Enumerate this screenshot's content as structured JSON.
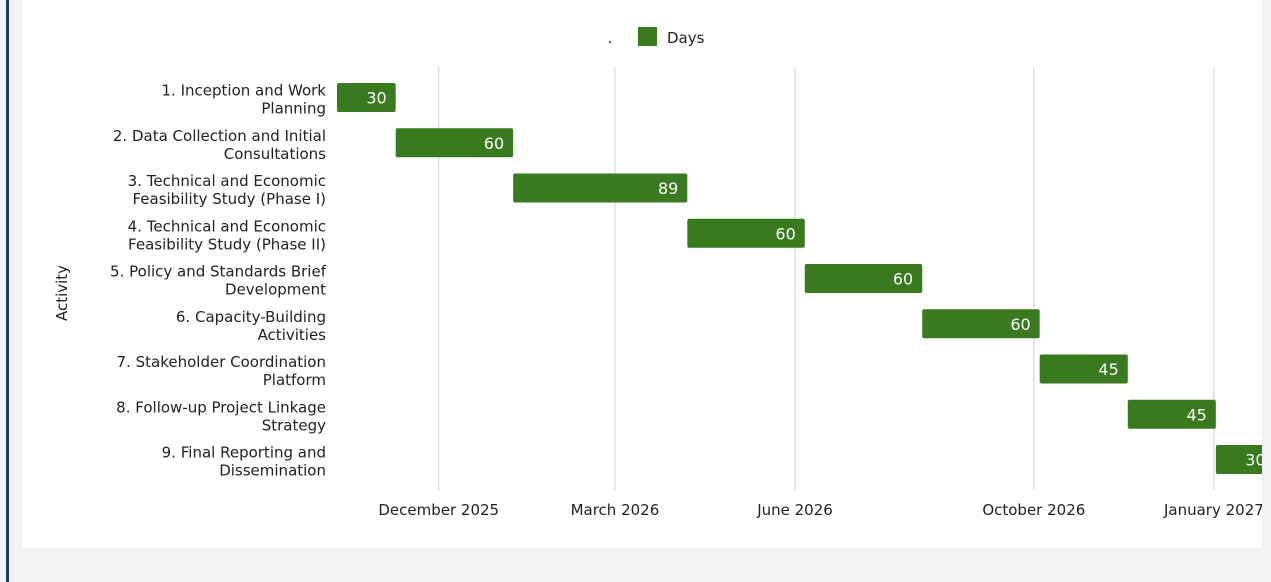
{
  "chart_data": {
    "type": "bar",
    "subtype": "gantt",
    "title": "",
    "xlabel": "",
    "ylabel": "Activity",
    "legend": {
      "placement": "top",
      "marker": ".",
      "label": "Days"
    },
    "grid": true,
    "colors": {
      "bar": "#3a7a1f",
      "grid": "#d0d0d0",
      "text": "#222222",
      "bar_label": "#ffffff"
    },
    "x_range": [
      "2025-10-09",
      "2027-01-22"
    ],
    "x_ticks": [
      {
        "date": "2025-12-01",
        "label": "December 2025"
      },
      {
        "date": "2026-03-01",
        "label": "March 2026"
      },
      {
        "date": "2026-06-01",
        "label": "June 2026"
      },
      {
        "date": "2026-10-01",
        "label": "October 2026"
      },
      {
        "date": "2027-01-01",
        "label": "January 2027"
      }
    ],
    "categories": [
      [
        "1. Inception and Work",
        "Planning"
      ],
      [
        "2. Data Collection and Initial",
        "Consultations"
      ],
      [
        "3. Technical and Economic",
        "Feasibility Study (Phase I)"
      ],
      [
        "4. Technical and Economic",
        "Feasibility Study (Phase II)"
      ],
      [
        "5. Policy and Standards Brief",
        "Development"
      ],
      [
        "6. Capacity-Building",
        "Activities"
      ],
      [
        "7. Stakeholder Coordination",
        "Platform"
      ],
      [
        "8. Follow-up Project Linkage",
        "Strategy"
      ],
      [
        "9. Final Reporting and",
        "Dissemination"
      ]
    ],
    "series": [
      {
        "name": "Days",
        "start": [
          "2025-10-10",
          "2025-11-09",
          "2026-01-08",
          "2026-04-07",
          "2026-06-06",
          "2026-08-05",
          "2026-10-04",
          "2026-11-18",
          "2027-01-02"
        ],
        "values": [
          30,
          60,
          89,
          60,
          60,
          60,
          45,
          45,
          30
        ]
      }
    ]
  }
}
